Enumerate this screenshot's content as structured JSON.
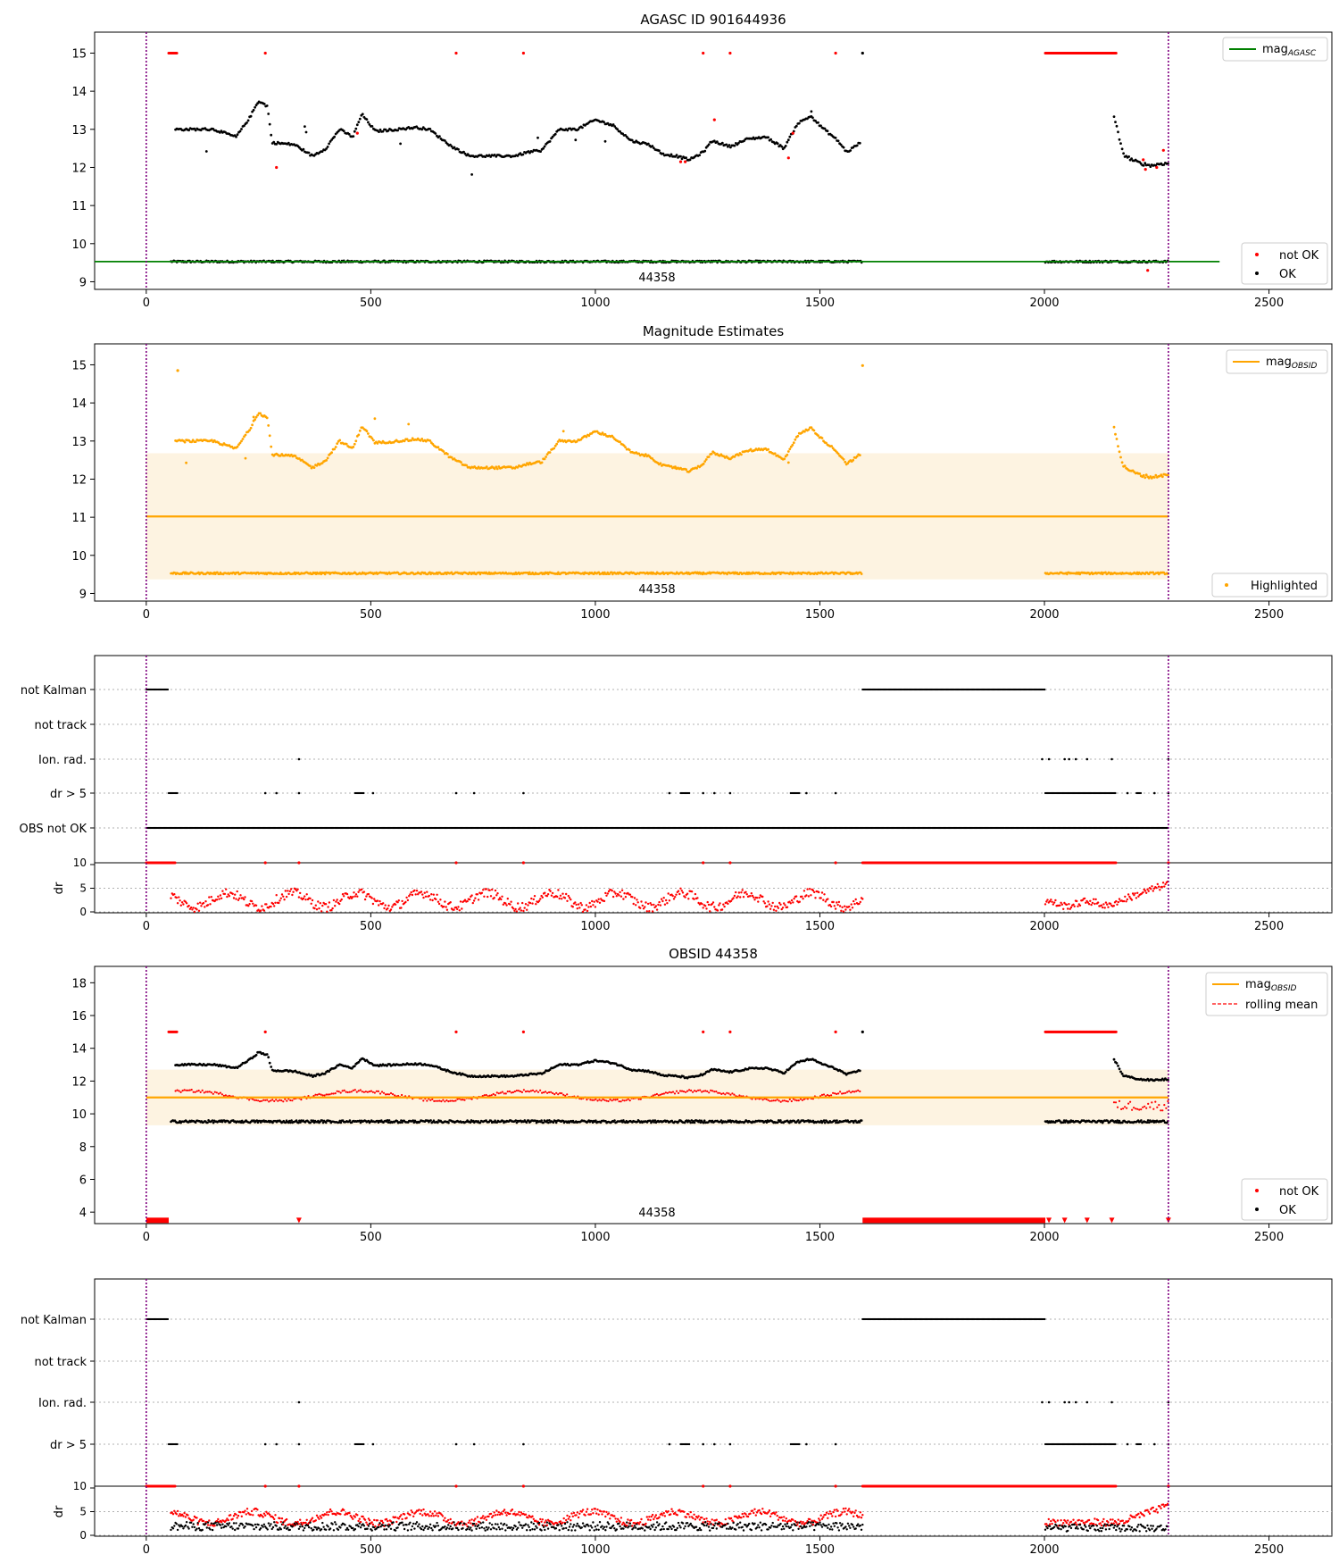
{
  "chart_data": [
    {
      "type": "scatter",
      "title": "AGASC ID 901644936",
      "xlim": [
        -115,
        2640
      ],
      "ylim": [
        8.8,
        15.55
      ],
      "x_ticks": [
        0,
        500,
        1000,
        1500,
        2000,
        2500
      ],
      "y_ticks": [
        9,
        10,
        11,
        12,
        13,
        14,
        15
      ],
      "vlines": [
        0,
        2276
      ],
      "vline_color": "#800080",
      "obsid_label": "44358",
      "obsid_label_x": 1138,
      "hline": {
        "name": "mag_AGASC",
        "value": 9.53,
        "x_range": [
          -115,
          2390
        ],
        "color": "#008000"
      },
      "legend_upper": {
        "base": "mag",
        "sub": "AGASC",
        "kind": "line",
        "color": "#008000"
      },
      "legend_lower": [
        {
          "name": "not OK",
          "color": "#ff0000"
        },
        {
          "name": "OK",
          "color": "#000000"
        }
      ],
      "series": [
        {
          "name": "OK",
          "color": "#000000"
        },
        {
          "name": "not OK",
          "color": "#ff0000"
        }
      ]
    },
    {
      "type": "scatter",
      "title": "Magnitude Estimates",
      "xlim": [
        -115,
        2640
      ],
      "ylim": [
        8.8,
        15.55
      ],
      "x_ticks": [
        0,
        500,
        1000,
        1500,
        2000,
        2500
      ],
      "y_ticks": [
        9,
        10,
        11,
        12,
        13,
        14,
        15
      ],
      "vlines": [
        0,
        2276
      ],
      "obsid_label": "44358",
      "obsid_label_x": 1138,
      "band": {
        "x_range": [
          0,
          2276
        ],
        "y_range": [
          9.37,
          12.68
        ],
        "color": "#fdf3e1"
      },
      "hline": {
        "name": "mag_OBSID",
        "value": 11.02,
        "x_range": [
          0,
          2276
        ],
        "color": "#ffa500"
      },
      "legend_upper": {
        "base": "mag",
        "sub": "OBSID",
        "kind": "line",
        "color": "#ffa500"
      },
      "legend_lower": [
        {
          "name": "Highlighted",
          "color": "#ffa500"
        }
      ],
      "series": [
        {
          "name": "Highlighted",
          "color": "#ffa500"
        }
      ]
    },
    {
      "type": "scatter",
      "xlim": [
        -115,
        2640
      ],
      "categories": [
        "not Kalman",
        "not track",
        "Ion. rad.",
        "dr > 5",
        "OBS not OK"
      ],
      "vlines": [
        0,
        2276
      ],
      "flags": {
        "not Kalman": [
          [
            0,
            50
          ],
          [
            1595,
            2002
          ]
        ],
        "not track": [],
        "Ion. rad.": [
          [
            340,
            340
          ],
          [
            1995,
            1995
          ],
          [
            2010,
            2010
          ],
          [
            2045,
            2045
          ],
          [
            2055,
            2055
          ],
          [
            2070,
            2070
          ],
          [
            2095,
            2095
          ],
          [
            2150,
            2150
          ],
          [
            2276,
            2276
          ]
        ],
        "dr > 5": [
          [
            50,
            70
          ],
          [
            265,
            265
          ],
          [
            290,
            290
          ],
          [
            340,
            340
          ],
          [
            465,
            485
          ],
          [
            505,
            505
          ],
          [
            690,
            690
          ],
          [
            730,
            730
          ],
          [
            840,
            840
          ],
          [
            1165,
            1165
          ],
          [
            1190,
            1210
          ],
          [
            1240,
            1240
          ],
          [
            1265,
            1265
          ],
          [
            1300,
            1300
          ],
          [
            1435,
            1455
          ],
          [
            1470,
            1470
          ],
          [
            1535,
            1535
          ],
          [
            2002,
            2160
          ],
          [
            2185,
            2185
          ],
          [
            2205,
            2215
          ],
          [
            2245,
            2245
          ],
          [
            2276,
            2276
          ]
        ],
        "OBS not OK": [
          [
            0,
            2276
          ]
        ]
      },
      "dr_panel": {
        "ylabel": "dr",
        "y_ticks": [
          0,
          5,
          10
        ],
        "ylim": [
          0,
          10
        ],
        "red_at_10": [
          [
            0,
            65
          ],
          [
            265,
            265
          ],
          [
            340,
            340
          ],
          [
            690,
            690
          ],
          [
            840,
            840
          ],
          [
            1240,
            1240
          ],
          [
            1300,
            1300
          ],
          [
            1535,
            1535
          ],
          [
            1595,
            2160
          ],
          [
            2276,
            2276
          ]
        ]
      },
      "x_ticks": [
        0,
        500,
        1000,
        1500,
        2000,
        2500
      ]
    },
    {
      "type": "scatter",
      "title": "OBSID 44358",
      "xlim": [
        -115,
        2640
      ],
      "ylim": [
        3.3,
        19.0
      ],
      "x_ticks": [
        0,
        500,
        1000,
        1500,
        2000,
        2500
      ],
      "y_ticks": [
        4,
        6,
        8,
        10,
        12,
        14,
        16,
        18
      ],
      "vlines": [
        0,
        2276
      ],
      "obsid_label": "44358",
      "obsid_label_x": 1138,
      "band": {
        "x_range": [
          0,
          2276
        ],
        "y_range": [
          9.3,
          12.7
        ],
        "color": "#fdf3e1"
      },
      "hline": {
        "name": "mag_OBSID",
        "value": 11.0,
        "x_range": [
          0,
          2276
        ],
        "color": "#ffa500"
      },
      "rolling_mean_level": 11.1,
      "triangles_at": 3.5,
      "triangle_ranges": [
        [
          0,
          50
        ],
        [
          340,
          340
        ],
        [
          1595,
          2002
        ],
        [
          2010,
          2010
        ],
        [
          2045,
          2045
        ],
        [
          2095,
          2095
        ],
        [
          2150,
          2150
        ],
        [
          2276,
          2276
        ]
      ],
      "legend_upper": [
        {
          "base": "mag",
          "sub": "OBSID",
          "kind": "line",
          "color": "#ffa500"
        },
        {
          "name": "rolling mean",
          "kind": "dashed",
          "color": "#ff0000"
        }
      ],
      "legend_lower": [
        {
          "name": "not OK",
          "color": "#ff0000"
        },
        {
          "name": "OK",
          "color": "#000000"
        }
      ]
    },
    {
      "type": "scatter",
      "xlim": [
        -115,
        2640
      ],
      "categories": [
        "not Kalman",
        "not track",
        "Ion. rad.",
        "dr > 5"
      ],
      "vlines": [
        0,
        2276
      ],
      "dr_panel": {
        "ylabel": "dr",
        "y_ticks": [
          0,
          5,
          10
        ],
        "ylim": [
          0,
          10
        ]
      },
      "x_ticks": [
        0,
        500,
        1000,
        1500,
        2000,
        2500
      ]
    }
  ]
}
